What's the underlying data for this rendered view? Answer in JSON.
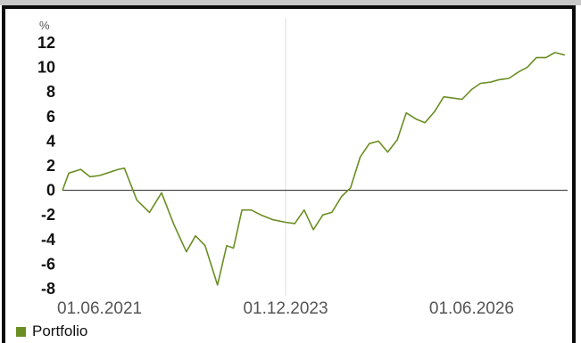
{
  "chart_data": {
    "type": "line",
    "ylabel": "%",
    "ylim": [
      -8,
      12
    ],
    "yticks": [
      "12",
      "10",
      "8",
      "6",
      "4",
      "2",
      "0",
      "-2",
      "-4",
      "-6",
      "-8"
    ],
    "xticks": [
      "01.06.2021",
      "01.12.2023",
      "01.06.2026"
    ],
    "grid": false,
    "legend_position": "bottom-left",
    "series": [
      {
        "name": "Portfolio",
        "color": "#6b8e23",
        "points": [
          [
            "2020-12-01",
            0.0
          ],
          [
            "2021-01-01",
            1.4
          ],
          [
            "2021-03-01",
            1.7
          ],
          [
            "2021-04-15",
            1.1
          ],
          [
            "2021-06-01",
            1.2
          ],
          [
            "2021-09-01",
            1.7
          ],
          [
            "2021-10-01",
            1.8
          ],
          [
            "2021-12-01",
            -0.8
          ],
          [
            "2022-02-01",
            -1.8
          ],
          [
            "2022-04-01",
            -0.2
          ],
          [
            "2022-06-01",
            -2.8
          ],
          [
            "2022-08-01",
            -5.0
          ],
          [
            "2022-09-15",
            -3.7
          ],
          [
            "2022-11-01",
            -4.5
          ],
          [
            "2023-01-01",
            -7.7
          ],
          [
            "2023-02-15",
            -4.5
          ],
          [
            "2023-03-20",
            -4.7
          ],
          [
            "2023-05-01",
            -1.6
          ],
          [
            "2023-06-15",
            -1.6
          ],
          [
            "2023-08-01",
            -2.0
          ],
          [
            "2023-10-01",
            -2.4
          ],
          [
            "2023-12-01",
            -2.6
          ],
          [
            "2024-01-15",
            -2.7
          ],
          [
            "2024-03-01",
            -1.6
          ],
          [
            "2024-04-15",
            -3.2
          ],
          [
            "2024-06-01",
            -2.0
          ],
          [
            "2024-07-15",
            -1.8
          ],
          [
            "2024-09-01",
            -0.5
          ],
          [
            "2024-10-15",
            0.2
          ],
          [
            "2024-12-01",
            2.7
          ],
          [
            "2025-01-15",
            3.8
          ],
          [
            "2025-03-01",
            4.0
          ],
          [
            "2025-04-15",
            3.1
          ],
          [
            "2025-06-01",
            4.1
          ],
          [
            "2025-07-15",
            6.3
          ],
          [
            "2025-09-01",
            5.8
          ],
          [
            "2025-10-15",
            5.5
          ],
          [
            "2025-12-01",
            6.4
          ],
          [
            "2026-01-15",
            7.6
          ],
          [
            "2026-03-01",
            7.5
          ],
          [
            "2026-04-15",
            7.4
          ],
          [
            "2026-06-01",
            8.2
          ],
          [
            "2026-07-15",
            8.7
          ],
          [
            "2026-09-01",
            8.8
          ],
          [
            "2026-10-15",
            9.0
          ],
          [
            "2026-12-01",
            9.1
          ],
          [
            "2027-01-15",
            9.6
          ],
          [
            "2027-03-01",
            10.0
          ],
          [
            "2027-04-15",
            10.8
          ],
          [
            "2027-06-01",
            10.8
          ],
          [
            "2027-07-15",
            11.2
          ],
          [
            "2027-09-01",
            11.0
          ]
        ]
      }
    ]
  }
}
